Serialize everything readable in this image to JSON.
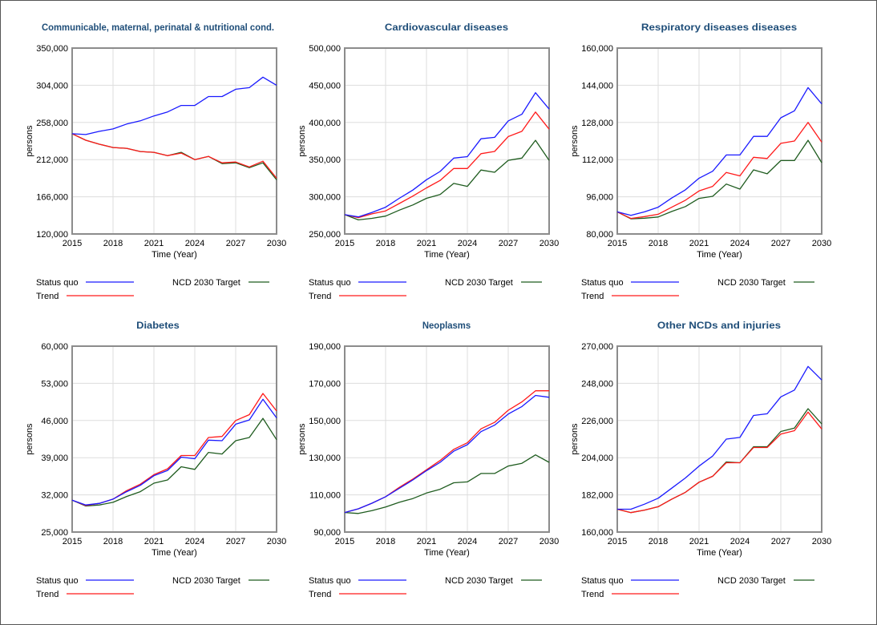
{
  "legend_labels": {
    "status_quo": "Status quo",
    "trend": "Trend",
    "target": "NCD 2030 Target"
  },
  "colors": {
    "status_quo": "#1a1aff",
    "trend": "#ff1a1a",
    "target": "#1f5c1f",
    "title": "#1f4e79"
  },
  "chart_data": [
    {
      "type": "line",
      "title": "Communicable, maternal, perinatal & nutritional cond.",
      "xlabel": "Time (Year)",
      "ylabel": "persons",
      "xlim": [
        2015,
        2030
      ],
      "ylim": [
        120000,
        350000
      ],
      "yticks": [
        120000,
        166000,
        212000,
        258000,
        304000,
        350000
      ],
      "ytick_labels": [
        "120,000",
        "166,000",
        "212,000",
        "258,000",
        "304,000",
        "350,000"
      ],
      "xticks": [
        2015,
        2018,
        2021,
        2024,
        2027,
        2030
      ],
      "x": [
        2015,
        2016,
        2017,
        2018,
        2019,
        2020,
        2021,
        2022,
        2023,
        2024,
        2025,
        2026,
        2027,
        2028,
        2029,
        2030
      ],
      "series": [
        {
          "name": "Status quo",
          "key": "status_quo",
          "values": [
            244000,
            243000,
            247000,
            250000,
            256000,
            260000,
            266000,
            271000,
            279000,
            279000,
            290000,
            290000,
            299000,
            301000,
            314000,
            304000
          ]
        },
        {
          "name": "Trend",
          "key": "trend",
          "values": [
            244000,
            236000,
            231000,
            227000,
            226000,
            222000,
            221000,
            217000,
            220000,
            212000,
            216000,
            208000,
            209000,
            203000,
            210000,
            189000
          ]
        },
        {
          "name": "NCD 2030 Target",
          "key": "target",
          "values": [
            244000,
            236000,
            231000,
            227000,
            226000,
            222000,
            221000,
            217000,
            221000,
            212000,
            216000,
            207000,
            208000,
            202000,
            208000,
            187000
          ]
        }
      ]
    },
    {
      "type": "line",
      "title": "Cardiovascular diseases",
      "xlabel": "Time (Year)",
      "ylabel": "persons",
      "xlim": [
        2015,
        2030
      ],
      "ylim": [
        250000,
        500000
      ],
      "yticks": [
        250000,
        300000,
        350000,
        400000,
        450000,
        500000
      ],
      "ytick_labels": [
        "250,000",
        "300,000",
        "350,000",
        "400,000",
        "450,000",
        "500,000"
      ],
      "xticks": [
        2015,
        2018,
        2021,
        2024,
        2027,
        2030
      ],
      "x": [
        2015,
        2016,
        2017,
        2018,
        2019,
        2020,
        2021,
        2022,
        2023,
        2024,
        2025,
        2026,
        2027,
        2028,
        2029,
        2030
      ],
      "series": [
        {
          "name": "Status quo",
          "key": "status_quo",
          "values": [
            276000,
            273000,
            279000,
            286000,
            298000,
            309000,
            323000,
            334000,
            352000,
            354000,
            378000,
            380000,
            402000,
            411000,
            440000,
            418000
          ]
        },
        {
          "name": "Trend",
          "key": "trend",
          "values": [
            276000,
            272000,
            277000,
            281000,
            291000,
            301000,
            312000,
            322000,
            338000,
            338000,
            358000,
            361000,
            381000,
            388000,
            414000,
            391000
          ]
        },
        {
          "name": "NCD 2030 Target",
          "key": "target",
          "values": [
            276000,
            269000,
            271000,
            274000,
            282000,
            289000,
            298000,
            303000,
            318000,
            314000,
            336000,
            333000,
            349000,
            352000,
            376000,
            349000
          ]
        }
      ]
    },
    {
      "type": "line",
      "title": "Respiratory diseases diseases",
      "xlabel": "Time (Year)",
      "ylabel": "persons",
      "xlim": [
        2015,
        2030
      ],
      "ylim": [
        80000,
        160000
      ],
      "yticks": [
        80000,
        96000,
        112000,
        128000,
        144000,
        160000
      ],
      "ytick_labels": [
        "80,000",
        "96,000",
        "112,000",
        "128,000",
        "144,000",
        "160,000"
      ],
      "xticks": [
        2015,
        2018,
        2021,
        2024,
        2027,
        2030
      ],
      "x": [
        2015,
        2016,
        2017,
        2018,
        2019,
        2020,
        2021,
        2022,
        2023,
        2024,
        2025,
        2026,
        2027,
        2028,
        2029,
        2030
      ],
      "series": [
        {
          "name": "Status quo",
          "key": "status_quo",
          "values": [
            89500,
            88000,
            89500,
            91500,
            95500,
            99000,
            104000,
            107000,
            114000,
            114000,
            122000,
            122000,
            130000,
            133000,
            143000,
            136000
          ]
        },
        {
          "name": "Trend",
          "key": "trend",
          "values": [
            89500,
            86700,
            87500,
            88500,
            91500,
            94500,
            98500,
            100500,
            106500,
            105000,
            113000,
            112500,
            119000,
            120000,
            128000,
            119500
          ]
        },
        {
          "name": "NCD 2030 Target",
          "key": "target",
          "values": [
            89500,
            86500,
            86800,
            87300,
            89700,
            91800,
            95300,
            96200,
            101500,
            99300,
            107600,
            105900,
            111600,
            111600,
            120300,
            110700
          ]
        }
      ]
    },
    {
      "type": "line",
      "title": "Diabetes",
      "xlabel": "Time (Year)",
      "ylabel": "persons",
      "xlim": [
        2015,
        2030
      ],
      "ylim": [
        25000,
        60000
      ],
      "yticks": [
        25000,
        32000,
        39000,
        46000,
        53000,
        60000
      ],
      "ytick_labels": [
        "25,000",
        "32,000",
        "39,000",
        "46,000",
        "53,000",
        "60,000"
      ],
      "xticks": [
        2015,
        2018,
        2021,
        2024,
        2027,
        2030
      ],
      "x": [
        2015,
        2016,
        2017,
        2018,
        2019,
        2020,
        2021,
        2022,
        2023,
        2024,
        2025,
        2026,
        2027,
        2028,
        2029,
        2030
      ],
      "series": [
        {
          "name": "Status quo",
          "key": "status_quo",
          "values": [
            31000,
            30100,
            30400,
            31200,
            32600,
            33800,
            35600,
            36600,
            39100,
            38800,
            42300,
            42200,
            45300,
            46100,
            50000,
            46500
          ]
        },
        {
          "name": "Trend",
          "key": "trend",
          "values": [
            31000,
            30000,
            30400,
            31200,
            32800,
            34000,
            35800,
            36900,
            39400,
            39400,
            42800,
            43000,
            46000,
            47100,
            51100,
            47800
          ]
        },
        {
          "name": "NCD 2030 Target",
          "key": "target",
          "values": [
            31000,
            29900,
            30100,
            30600,
            31700,
            32600,
            34200,
            34800,
            37300,
            36800,
            40000,
            39700,
            42200,
            42800,
            46400,
            42400
          ]
        }
      ]
    },
    {
      "type": "line",
      "title": "Neoplasms",
      "xlabel": "Time (Year)",
      "ylabel": "persons",
      "xlim": [
        2015,
        2030
      ],
      "ylim": [
        90000,
        190000
      ],
      "yticks": [
        90000,
        110000,
        130000,
        150000,
        170000,
        190000
      ],
      "ytick_labels": [
        "90,000",
        "110,000",
        "130,000",
        "150,000",
        "170,000",
        "190,000"
      ],
      "xticks": [
        2015,
        2018,
        2021,
        2024,
        2027,
        2030
      ],
      "x": [
        2015,
        2016,
        2017,
        2018,
        2019,
        2020,
        2021,
        2022,
        2023,
        2024,
        2025,
        2026,
        2027,
        2028,
        2029,
        2030
      ],
      "series": [
        {
          "name": "Status quo",
          "key": "status_quo",
          "values": [
            100500,
            102500,
            105500,
            109000,
            113500,
            118000,
            123000,
            127500,
            133500,
            137000,
            144000,
            147500,
            153500,
            157500,
            163500,
            162500
          ]
        },
        {
          "name": "Trend",
          "key": "trend",
          "values": [
            100500,
            102500,
            105500,
            109000,
            114000,
            118500,
            123500,
            128500,
            134500,
            138000,
            145500,
            149000,
            155500,
            160000,
            166000,
            166000
          ]
        },
        {
          "name": "NCD 2030 Target",
          "key": "target",
          "values": [
            100500,
            100000,
            101500,
            103500,
            106000,
            108000,
            111000,
            113000,
            116500,
            117000,
            121500,
            121500,
            125500,
            127000,
            131500,
            127500
          ]
        }
      ]
    },
    {
      "type": "line",
      "title": "Other NCDs and injuries",
      "xlabel": "Time (Year)",
      "ylabel": "persons",
      "xlim": [
        2015,
        2030
      ],
      "ylim": [
        160000,
        270000
      ],
      "yticks": [
        160000,
        182000,
        204000,
        226000,
        248000,
        270000
      ],
      "ytick_labels": [
        "160,000",
        "182,000",
        "204,000",
        "226,000",
        "248,000",
        "270,000"
      ],
      "xticks": [
        2015,
        2018,
        2021,
        2024,
        2027,
        2030
      ],
      "x": [
        2015,
        2016,
        2017,
        2018,
        2019,
        2020,
        2021,
        2022,
        2023,
        2024,
        2025,
        2026,
        2027,
        2028,
        2029,
        2030
      ],
      "series": [
        {
          "name": "Status quo",
          "key": "status_quo",
          "values": [
            173500,
            173500,
            176500,
            180000,
            186000,
            192000,
            199000,
            205000,
            215000,
            216000,
            229000,
            230000,
            240000,
            244000,
            258000,
            250000
          ]
        },
        {
          "name": "Trend",
          "key": "trend",
          "values": [
            173500,
            171500,
            173000,
            175000,
            179500,
            183500,
            189500,
            193000,
            201000,
            201000,
            210000,
            210000,
            218000,
            220000,
            231000,
            221000
          ]
        },
        {
          "name": "NCD 2030 Target",
          "key": "target",
          "values": [
            173500,
            171500,
            173000,
            175000,
            179500,
            183500,
            189500,
            193000,
            201500,
            201000,
            210500,
            210500,
            219500,
            221500,
            233000,
            224000
          ]
        }
      ]
    }
  ]
}
